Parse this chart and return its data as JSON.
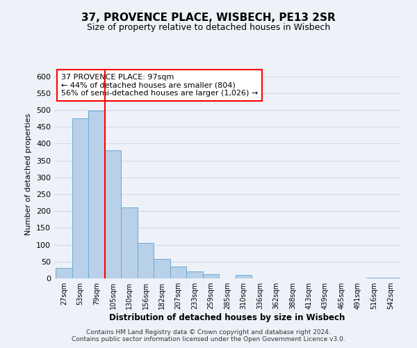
{
  "title": "37, PROVENCE PLACE, WISBECH, PE13 2SR",
  "subtitle": "Size of property relative to detached houses in Wisbech",
  "xlabel": "Distribution of detached houses by size in Wisbech",
  "ylabel": "Number of detached properties",
  "bin_labels": [
    "27sqm",
    "53sqm",
    "79sqm",
    "105sqm",
    "130sqm",
    "156sqm",
    "182sqm",
    "207sqm",
    "233sqm",
    "259sqm",
    "285sqm",
    "310sqm",
    "336sqm",
    "362sqm",
    "388sqm",
    "413sqm",
    "439sqm",
    "465sqm",
    "491sqm",
    "516sqm",
    "542sqm"
  ],
  "bar_heights": [
    30,
    475,
    498,
    380,
    210,
    105,
    57,
    35,
    20,
    12,
    0,
    11,
    0,
    0,
    0,
    0,
    0,
    0,
    0,
    2,
    2
  ],
  "bar_color": "#b8d0e8",
  "bar_edge_color": "#6aaad4",
  "vline_x": 2.5,
  "vline_color": "red",
  "annotation_text": "37 PROVENCE PLACE: 97sqm\n← 44% of detached houses are smaller (804)\n56% of semi-detached houses are larger (1,026) →",
  "annotation_box_color": "white",
  "annotation_box_edge_color": "red",
  "ylim": [
    0,
    620
  ],
  "yticks": [
    0,
    50,
    100,
    150,
    200,
    250,
    300,
    350,
    400,
    450,
    500,
    550,
    600
  ],
  "footer_line1": "Contains HM Land Registry data © Crown copyright and database right 2024.",
  "footer_line2": "Contains public sector information licensed under the Open Government Licence v3.0.",
  "background_color": "#eef2f8",
  "grid_color": "#d0d8e8",
  "plot_bg_color": "#eef2f8"
}
